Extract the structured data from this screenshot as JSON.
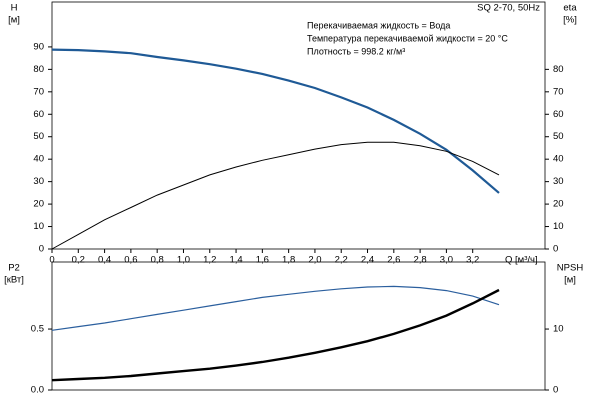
{
  "chart_data": [
    {
      "type": "line",
      "title": "SQ 2-70, 50Hz",
      "annotations": [
        "Перекачиваемая жидкость = Вода",
        "Температура перекачиваемой жидкости = 20 °C",
        "Плотность = 998.2 кг/м³"
      ],
      "ylabel": "H",
      "ylabel_unit": "[м]",
      "y2label": "eta",
      "y2label_unit": "[%]",
      "xlabel": "Q [м³/ч]",
      "x": [
        0,
        0.2,
        0.4,
        0.6,
        0.8,
        1.0,
        1.2,
        1.4,
        1.6,
        1.8,
        2.0,
        2.2,
        2.4,
        2.6,
        2.8,
        3.0,
        3.2,
        3.4
      ],
      "xlim": [
        0,
        3.75
      ],
      "xticks": [
        0,
        {
          "value": 0.2,
          "label": "0,2"
        },
        {
          "value": 0.4,
          "label": "0,4"
        },
        {
          "value": 0.6,
          "label": "0,6"
        },
        {
          "value": 0.8,
          "label": "0,8"
        },
        {
          "value": 1.0,
          "label": "1,0"
        },
        {
          "value": 1.2,
          "label": "1,2"
        },
        {
          "value": 1.4,
          "label": "1,4"
        },
        {
          "value": 1.6,
          "label": "1,6"
        },
        {
          "value": 1.8,
          "label": "1,8"
        },
        {
          "value": 2.0,
          "label": "2,0"
        },
        {
          "value": 2.2,
          "label": "2,2"
        },
        {
          "value": 2.4,
          "label": "2,4"
        },
        {
          "value": 2.6,
          "label": "2,6"
        },
        {
          "value": 2.8,
          "label": "2,8"
        },
        {
          "value": 3.0,
          "label": "3,0"
        },
        {
          "value": 3.2,
          "label": "3,2"
        }
      ],
      "ylim": [
        0,
        110
      ],
      "yticks": [
        0,
        10,
        20,
        30,
        40,
        50,
        60,
        70,
        80,
        90
      ],
      "y2lim": [
        0,
        110
      ],
      "y2ticks": [
        0,
        10,
        20,
        30,
        40,
        50,
        60,
        70,
        80
      ],
      "series": [
        {
          "name": "H",
          "color": "#1f5a96",
          "values": [
            88.8,
            88.6,
            88,
            87.2,
            85.5,
            84,
            82.3,
            80.3,
            78,
            75,
            71.7,
            67.5,
            63,
            57.5,
            51.3,
            44.2,
            35,
            25
          ]
        },
        {
          "name": "eta",
          "color": "#000000",
          "axis": "y2",
          "values": [
            0,
            6.5,
            13,
            18.5,
            24,
            28.5,
            33,
            36.5,
            39.5,
            42,
            44.5,
            46.5,
            47.5,
            47.5,
            46,
            43.5,
            39,
            33
          ]
        }
      ]
    },
    {
      "type": "line",
      "ylabel": "P2",
      "ylabel_unit": "[кВт]",
      "y2label": "NPSH",
      "y2label_unit": "[м]",
      "x": [
        0,
        0.2,
        0.4,
        0.6,
        0.8,
        1.0,
        1.2,
        1.4,
        1.6,
        1.8,
        2.0,
        2.2,
        2.4,
        2.6,
        2.8,
        3.0,
        3.2,
        3.4
      ],
      "xlim": [
        0,
        3.75
      ],
      "ylim": [
        0,
        1.05
      ],
      "yticks": [
        {
          "value": 0,
          "label": "0.0"
        },
        0.5
      ],
      "y2lim": [
        0,
        21
      ],
      "y2ticks": [
        0,
        10
      ],
      "series": [
        {
          "name": "P2",
          "color": "#2b5f9e",
          "values": [
            0.49,
            0.52,
            0.55,
            0.585,
            0.62,
            0.655,
            0.69,
            0.725,
            0.76,
            0.785,
            0.81,
            0.83,
            0.845,
            0.85,
            0.84,
            0.815,
            0.77,
            0.7
          ]
        },
        {
          "name": "NPSH",
          "color": "#000000",
          "axis": "y2",
          "values": [
            1.6,
            1.8,
            2.0,
            2.3,
            2.7,
            3.1,
            3.5,
            4.0,
            4.6,
            5.3,
            6.1,
            7.0,
            8.0,
            9.2,
            10.6,
            12.2,
            14.2,
            16.4
          ]
        }
      ]
    }
  ]
}
